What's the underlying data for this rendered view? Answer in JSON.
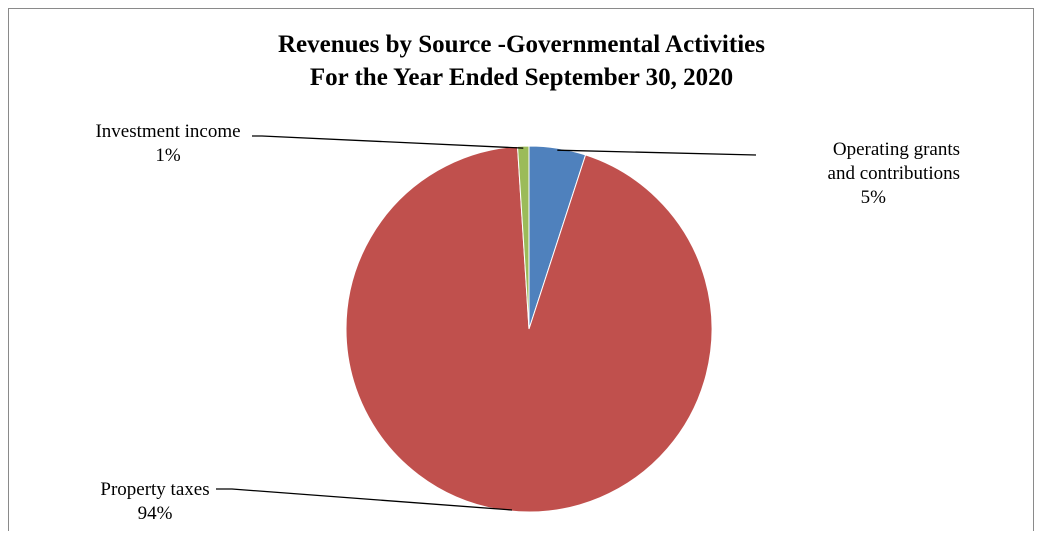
{
  "chart_data": {
    "type": "pie",
    "title_line1": "Revenues by Source -Governmental Activities",
    "title_line2": "For the Year Ended September 30, 2020",
    "slices": [
      {
        "name": "Operating grants and contributions",
        "name_line1": "Operating grants",
        "name_line2": "and contributions",
        "value": 5,
        "label": "5%",
        "color": "#4f81bd"
      },
      {
        "name": "Property taxes",
        "value": 94,
        "label": "94%",
        "color": "#c0504d"
      },
      {
        "name": "Investment income",
        "value": 1,
        "label": "1%",
        "color": "#9bbb59"
      }
    ]
  }
}
